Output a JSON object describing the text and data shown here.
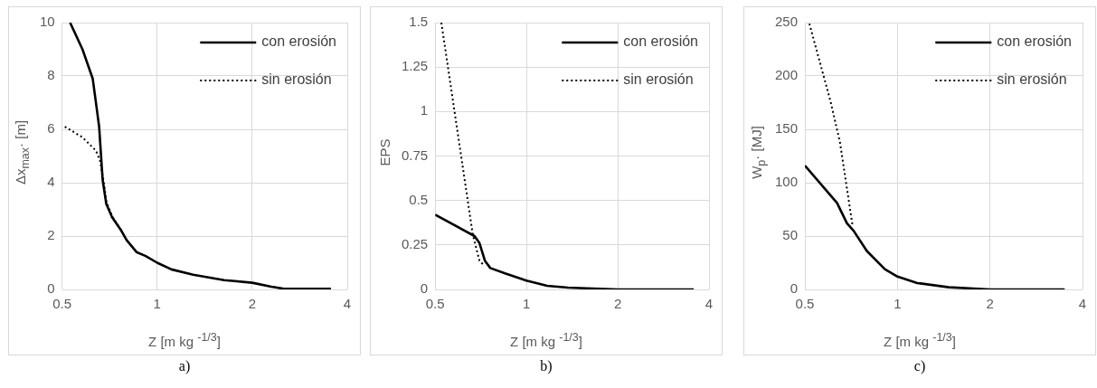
{
  "chart_data": [
    {
      "type": "line",
      "xlabel": "Z [m kg $^{-1/3}$]",
      "ylabel": "Δx$_{max}$· [m]",
      "log": "x",
      "grid": true,
      "legend": "top right",
      "xlim": [
        0.5,
        4
      ],
      "xticks": [
        0.5,
        1,
        2,
        4
      ],
      "ylim": [
        0,
        10
      ],
      "yticks": [
        0,
        2,
        4,
        6,
        8,
        10
      ],
      "annotations": [
        "a)"
      ],
      "series": [
        {
          "name": "con erosión",
          "color": "#000000",
          "line_style": "solid",
          "x": [
            0.53,
            0.58,
            0.625,
            0.655,
            0.672,
            0.69,
            0.72,
            0.77,
            0.8,
            0.86,
            0.92,
            1.0,
            1.11,
            1.3,
            1.63,
            2.0,
            2.3,
            2.5,
            3.55
          ],
          "values": [
            10,
            9,
            7.9,
            6.1,
            4.1,
            3.2,
            2.7,
            2.2,
            1.85,
            1.4,
            1.25,
            1.0,
            0.75,
            0.55,
            0.35,
            0.25,
            0.1,
            0.03,
            0.02
          ]
        },
        {
          "name": "sin erosión",
          "color": "#000000",
          "line_style": "dotted",
          "x": [
            0.51,
            0.58,
            0.64,
            0.66,
            0.68,
            0.69,
            0.72,
            0.77
          ],
          "values": [
            6.1,
            5.7,
            5.2,
            4.8,
            3.9,
            3.3,
            2.75,
            2.2
          ]
        }
      ]
    },
    {
      "type": "line",
      "xlabel": "Z [m kg $^{-1/3}$]",
      "ylabel": "EPS",
      "log": "x",
      "grid": true,
      "legend": "top right",
      "xlim": [
        0.5,
        4
      ],
      "xticks": [
        0.5,
        1,
        2,
        4
      ],
      "ylim": [
        0,
        1.5
      ],
      "yticks": [
        0,
        0.25,
        0.5,
        0.75,
        1,
        1.25,
        1.5
      ],
      "annotations": [
        "b)"
      ],
      "series": [
        {
          "name": "con erosión",
          "color": "#000000",
          "line_style": "solid",
          "x": [
            0.5,
            0.674,
            0.7,
            0.73,
            0.76,
            0.85,
            1.0,
            1.17,
            1.37,
            2.0,
            3.56
          ],
          "values": [
            0.42,
            0.3,
            0.26,
            0.16,
            0.12,
            0.09,
            0.05,
            0.02,
            0.01,
            0.0,
            0.0
          ]
        },
        {
          "name": "sin erosión",
          "color": "#000000",
          "line_style": "dotted",
          "x": [
            0.524,
            0.665,
            0.7,
            0.72
          ],
          "values": [
            1.5,
            0.31,
            0.16,
            0.14
          ]
        }
      ]
    },
    {
      "type": "line",
      "xlabel": "Z [m kg $^{-1/3}$]",
      "ylabel": "W$_{p}$· [MJ]",
      "log": "x",
      "grid": true,
      "legend": "top right",
      "xlim": [
        0.5,
        4
      ],
      "xticks": [
        0.5,
        1,
        2,
        4
      ],
      "ylim": [
        0,
        250
      ],
      "yticks": [
        0,
        50,
        100,
        150,
        200,
        250
      ],
      "annotations": [
        "c)"
      ],
      "series": [
        {
          "name": "con erosión",
          "color": "#000000",
          "line_style": "solid",
          "x": [
            0.5,
            0.636,
            0.685,
            0.72,
            0.795,
            0.91,
            1.0,
            1.16,
            1.47,
            2.0,
            3.5
          ],
          "values": [
            116,
            81,
            62,
            55,
            36,
            19,
            12,
            6,
            2,
            0,
            0
          ]
        },
        {
          "name": "sin erosión",
          "color": "#000000",
          "line_style": "dotted",
          "x": [
            0.517,
            0.606,
            0.65,
            0.715
          ],
          "values": [
            249,
            176,
            138,
            59
          ]
        }
      ]
    }
  ]
}
